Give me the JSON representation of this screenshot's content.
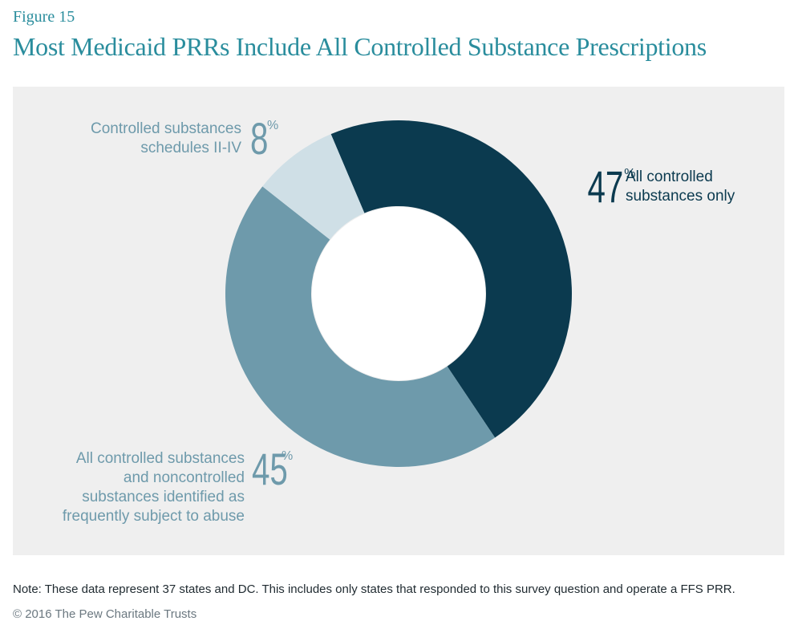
{
  "figure_label": "Figure 15",
  "title": "Most Medicaid PRRs Include All Controlled Substance Prescriptions",
  "note": "Note: These data represent 37 states and DC. This includes only states that responded to this survey question and operate a FFS PRR.",
  "credit": "© 2016 The Pew Charitable Trusts",
  "colors": {
    "title": "#2a8d9d",
    "panel_bg": "#efefef",
    "dark": "#0b3a4f",
    "mid": "#6e9aab",
    "light": "#cfdfe6"
  },
  "chart_data": {
    "type": "pie",
    "donut": true,
    "start": "12 o'clock, clockwise",
    "slices": [
      {
        "label_lines": [
          "All controlled",
          "substances only"
        ],
        "label": "All controlled substances only",
        "value": 47,
        "pct_number": "47",
        "pct_sign": "%",
        "color": "#0b3a4f"
      },
      {
        "label_lines": [
          "All controlled substances",
          "and noncontrolled",
          "substances identified as",
          "frequently subject to abuse"
        ],
        "label": "All controlled substances and noncontrolled substances identified as frequently subject to abuse",
        "value": 45,
        "pct_number": "45",
        "pct_sign": "%",
        "color": "#6e9aab"
      },
      {
        "label_lines": [
          "Controlled substances",
          "schedules II-IV"
        ],
        "label": "Controlled substances schedules II-IV",
        "value": 8,
        "pct_number": "8",
        "pct_sign": "%",
        "color": "#cfdfe6"
      }
    ]
  }
}
